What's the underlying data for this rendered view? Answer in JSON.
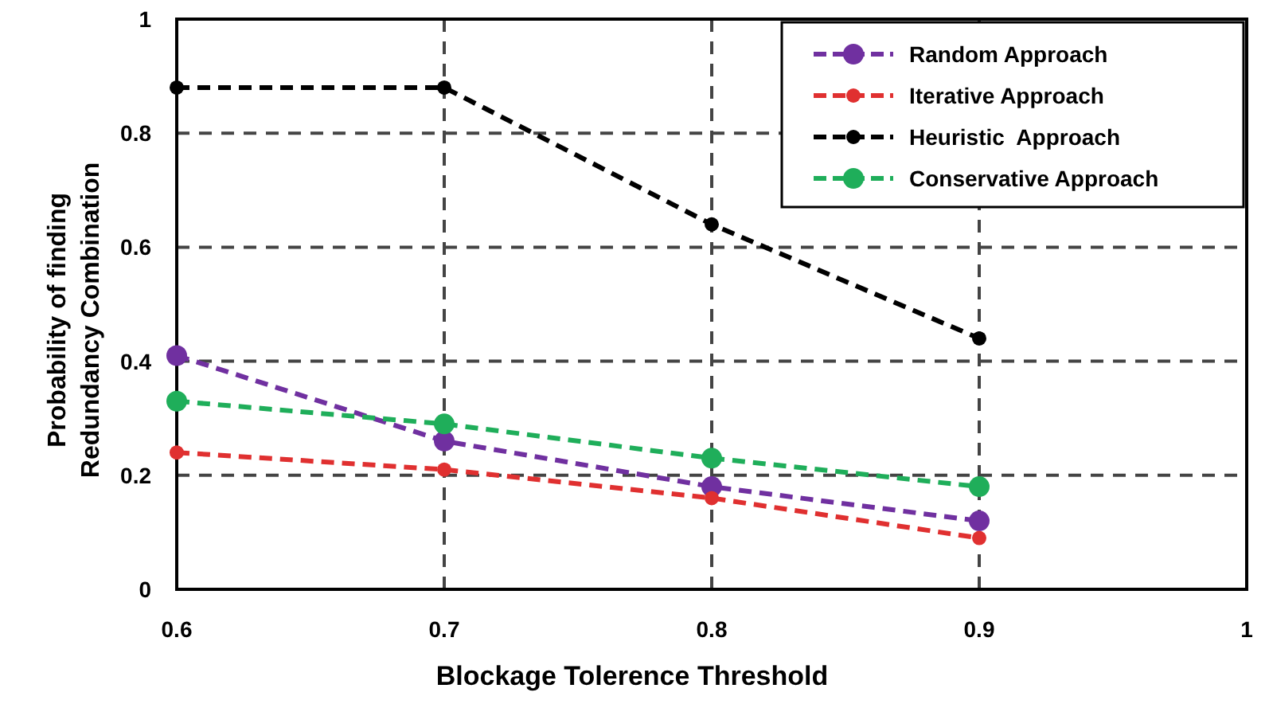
{
  "chart_data": {
    "type": "line",
    "xlabel": "Blockage Tolerence Threshold",
    "ylabel": "Probability of finding Redundancy Combination",
    "x": [
      0.6,
      0.7,
      0.8,
      0.9
    ],
    "series": [
      {
        "name": "Random Approach",
        "color": "#7030a0",
        "values": [
          0.41,
          0.26,
          0.18,
          0.12
        ]
      },
      {
        "name": "Iterative Approach",
        "color": "#e03030",
        "values": [
          0.24,
          0.21,
          0.16,
          0.09
        ]
      },
      {
        "name": "Heuristic  Approach",
        "color": "#000000",
        "values": [
          0.88,
          0.88,
          0.64,
          0.44
        ]
      },
      {
        "name": "Conservative Approach",
        "color": "#1fae5a",
        "values": [
          0.33,
          0.29,
          0.23,
          0.18
        ]
      }
    ],
    "xlim": [
      0.6,
      1
    ],
    "xticks": [
      0.6,
      0.7,
      0.8,
      0.9,
      1
    ],
    "ylim": [
      0,
      1
    ],
    "yticks": [
      0,
      0.2,
      0.4,
      0.6,
      0.8,
      1
    ],
    "grid": true,
    "legend": "top right",
    "marker": "circle",
    "line_style": "dashed"
  }
}
